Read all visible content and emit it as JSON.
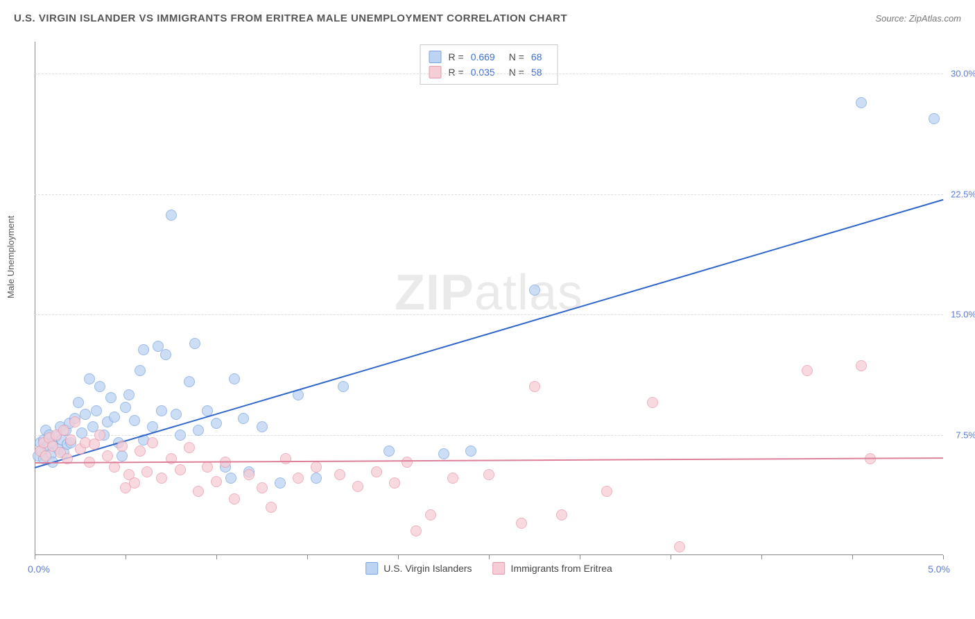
{
  "header": {
    "title": "U.S. VIRGIN ISLANDER VS IMMIGRANTS FROM ERITREA MALE UNEMPLOYMENT CORRELATION CHART",
    "source": "Source: ZipAtlas.com"
  },
  "y_axis": {
    "label": "Male Unemployment"
  },
  "watermark": {
    "zip": "ZIP",
    "atlas": "atlas"
  },
  "chart": {
    "type": "scatter",
    "xlim": [
      0.0,
      5.0
    ],
    "ylim": [
      0.0,
      32.0
    ],
    "x_ticks": [
      0.0,
      0.5,
      1.0,
      1.5,
      2.0,
      2.5,
      3.0,
      3.5,
      4.0,
      4.5,
      5.0
    ],
    "x_tick_labels": {
      "left": "0.0%",
      "right": "5.0%"
    },
    "y_ticks": [
      7.5,
      15.0,
      22.5,
      30.0
    ],
    "y_tick_labels": [
      "7.5%",
      "15.0%",
      "22.5%",
      "30.0%"
    ],
    "grid_color": "#dddddd",
    "axis_color": "#888888",
    "background_color": "#ffffff",
    "point_radius": 7,
    "point_opacity": 0.75,
    "series": [
      {
        "id": "usvi",
        "label": "U.S. Virgin Islanders",
        "fill": "#bcd3f2",
        "stroke": "#7ba4e0",
        "line_color": "#2f66c9",
        "R": "0.669",
        "N": "68",
        "trend": {
          "x1": 0.0,
          "y1": 5.5,
          "x2": 5.0,
          "y2": 22.2
        },
        "points": [
          [
            0.02,
            6.2
          ],
          [
            0.03,
            7.0
          ],
          [
            0.04,
            6.5
          ],
          [
            0.05,
            7.2
          ],
          [
            0.05,
            6.0
          ],
          [
            0.06,
            7.8
          ],
          [
            0.07,
            6.8
          ],
          [
            0.08,
            7.5
          ],
          [
            0.09,
            6.3
          ],
          [
            0.1,
            7.0
          ],
          [
            0.1,
            5.8
          ],
          [
            0.12,
            7.4
          ],
          [
            0.13,
            6.6
          ],
          [
            0.14,
            8.0
          ],
          [
            0.15,
            7.2
          ],
          [
            0.16,
            6.4
          ],
          [
            0.17,
            7.8
          ],
          [
            0.18,
            6.9
          ],
          [
            0.19,
            8.2
          ],
          [
            0.2,
            7.0
          ],
          [
            0.22,
            8.5
          ],
          [
            0.24,
            9.5
          ],
          [
            0.26,
            7.6
          ],
          [
            0.28,
            8.8
          ],
          [
            0.3,
            11.0
          ],
          [
            0.32,
            8.0
          ],
          [
            0.34,
            9.0
          ],
          [
            0.36,
            10.5
          ],
          [
            0.38,
            7.5
          ],
          [
            0.4,
            8.3
          ],
          [
            0.42,
            9.8
          ],
          [
            0.44,
            8.6
          ],
          [
            0.46,
            7.0
          ],
          [
            0.48,
            6.2
          ],
          [
            0.5,
            9.2
          ],
          [
            0.52,
            10.0
          ],
          [
            0.55,
            8.4
          ],
          [
            0.58,
            11.5
          ],
          [
            0.6,
            12.8
          ],
          [
            0.6,
            7.2
          ],
          [
            0.65,
            8.0
          ],
          [
            0.68,
            13.0
          ],
          [
            0.7,
            9.0
          ],
          [
            0.72,
            12.5
          ],
          [
            0.75,
            21.2
          ],
          [
            0.78,
            8.8
          ],
          [
            0.8,
            7.5
          ],
          [
            0.85,
            10.8
          ],
          [
            0.88,
            13.2
          ],
          [
            0.9,
            7.8
          ],
          [
            0.95,
            9.0
          ],
          [
            1.0,
            8.2
          ],
          [
            1.05,
            5.5
          ],
          [
            1.08,
            4.8
          ],
          [
            1.1,
            11.0
          ],
          [
            1.15,
            8.5
          ],
          [
            1.18,
            5.2
          ],
          [
            1.25,
            8.0
          ],
          [
            1.35,
            4.5
          ],
          [
            1.45,
            10.0
          ],
          [
            1.55,
            4.8
          ],
          [
            1.7,
            10.5
          ],
          [
            1.95,
            6.5
          ],
          [
            2.25,
            6.3
          ],
          [
            2.4,
            6.5
          ],
          [
            2.75,
            16.5
          ],
          [
            4.55,
            28.2
          ],
          [
            4.95,
            27.2
          ]
        ]
      },
      {
        "id": "eritrea",
        "label": "Immigrants from Eritrea",
        "fill": "#f6cdd6",
        "stroke": "#e998ab",
        "line_color": "#dd7f98",
        "R": "0.035",
        "N": "58",
        "trend": {
          "x1": 0.0,
          "y1": 5.8,
          "x2": 5.0,
          "y2": 6.1
        },
        "points": [
          [
            0.03,
            6.5
          ],
          [
            0.05,
            7.0
          ],
          [
            0.06,
            6.2
          ],
          [
            0.08,
            7.3
          ],
          [
            0.1,
            6.8
          ],
          [
            0.12,
            7.5
          ],
          [
            0.14,
            6.4
          ],
          [
            0.16,
            7.8
          ],
          [
            0.18,
            6.0
          ],
          [
            0.2,
            7.2
          ],
          [
            0.22,
            8.3
          ],
          [
            0.25,
            6.6
          ],
          [
            0.28,
            7.0
          ],
          [
            0.3,
            5.8
          ],
          [
            0.33,
            6.9
          ],
          [
            0.36,
            7.5
          ],
          [
            0.4,
            6.2
          ],
          [
            0.44,
            5.5
          ],
          [
            0.48,
            6.8
          ],
          [
            0.5,
            4.2
          ],
          [
            0.52,
            5.0
          ],
          [
            0.55,
            4.5
          ],
          [
            0.58,
            6.5
          ],
          [
            0.62,
            5.2
          ],
          [
            0.65,
            7.0
          ],
          [
            0.7,
            4.8
          ],
          [
            0.75,
            6.0
          ],
          [
            0.8,
            5.3
          ],
          [
            0.85,
            6.7
          ],
          [
            0.9,
            4.0
          ],
          [
            0.95,
            5.5
          ],
          [
            1.0,
            4.6
          ],
          [
            1.05,
            5.8
          ],
          [
            1.1,
            3.5
          ],
          [
            1.18,
            5.0
          ],
          [
            1.25,
            4.2
          ],
          [
            1.3,
            3.0
          ],
          [
            1.38,
            6.0
          ],
          [
            1.45,
            4.8
          ],
          [
            1.55,
            5.5
          ],
          [
            1.68,
            5.0
          ],
          [
            1.78,
            4.3
          ],
          [
            1.88,
            5.2
          ],
          [
            1.98,
            4.5
          ],
          [
            2.05,
            5.8
          ],
          [
            2.1,
            1.5
          ],
          [
            2.18,
            2.5
          ],
          [
            2.3,
            4.8
          ],
          [
            2.5,
            5.0
          ],
          [
            2.68,
            2.0
          ],
          [
            2.75,
            10.5
          ],
          [
            2.9,
            2.5
          ],
          [
            3.15,
            4.0
          ],
          [
            3.4,
            9.5
          ],
          [
            3.55,
            0.5
          ],
          [
            4.25,
            11.5
          ],
          [
            4.55,
            11.8
          ],
          [
            4.6,
            6.0
          ]
        ]
      }
    ]
  },
  "stats_labels": {
    "R": "R =",
    "N": "N ="
  },
  "legend": {
    "items": [
      {
        "series": "usvi"
      },
      {
        "series": "eritrea"
      }
    ]
  }
}
